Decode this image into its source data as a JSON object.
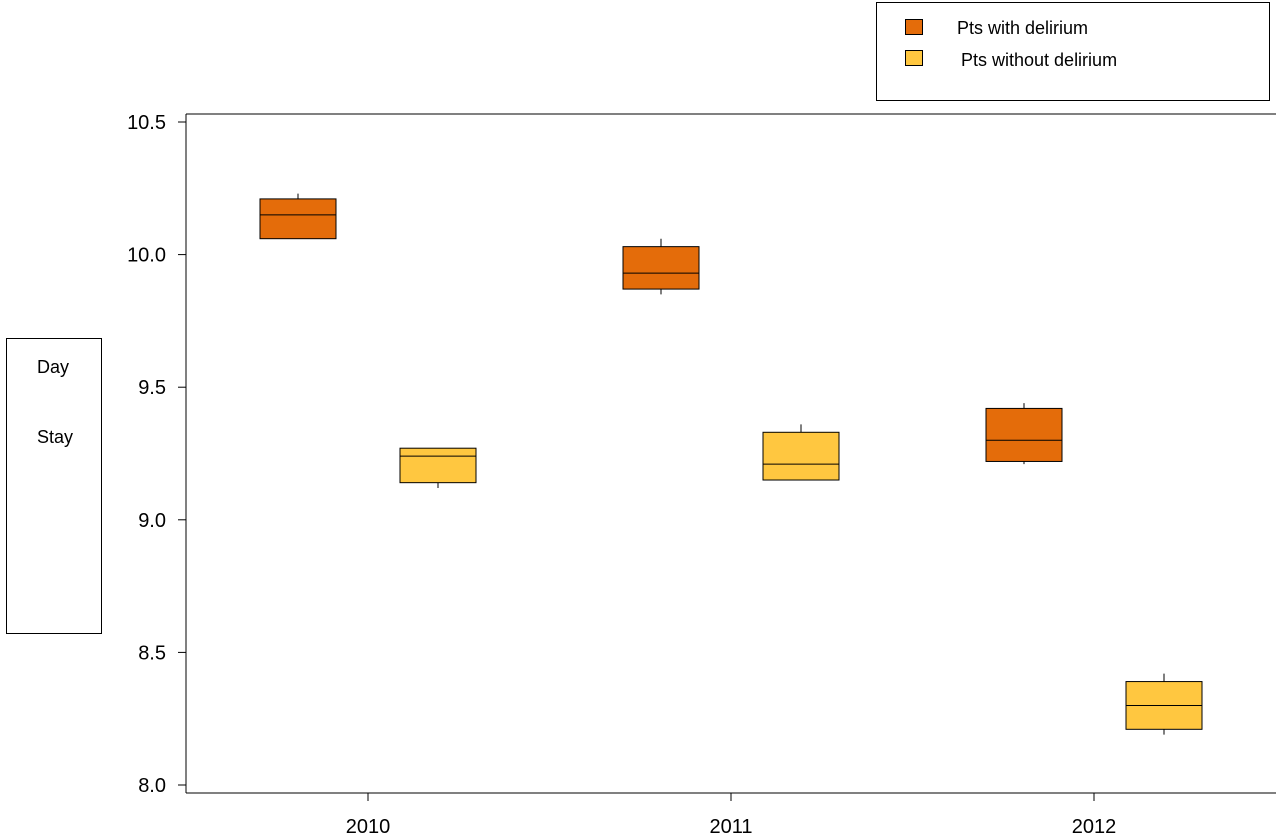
{
  "chart_data": {
    "type": "box",
    "categories": [
      "2010",
      "2011",
      "2012"
    ],
    "ylabel_lines": [
      "Day",
      "Stay"
    ],
    "ylim": [
      8.0,
      10.5
    ],
    "yticks": [
      "8.0",
      "8.5",
      "9.0",
      "9.5",
      "10.0",
      "10.5"
    ],
    "grid": false,
    "legend_position": "top-right",
    "series": [
      {
        "name": "Pts with  delirium",
        "color": "#E46C0A",
        "boxes": [
          {
            "category": "2010",
            "whisker_low": 10.06,
            "q1": 10.06,
            "median": 10.15,
            "q3": 10.21,
            "whisker_high": 10.23
          },
          {
            "category": "2011",
            "whisker_low": 9.85,
            "q1": 9.87,
            "median": 9.93,
            "q3": 10.03,
            "whisker_high": 10.06
          },
          {
            "category": "2012",
            "whisker_low": 9.21,
            "q1": 9.22,
            "median": 9.3,
            "q3": 9.42,
            "whisker_high": 9.44
          }
        ]
      },
      {
        "name": "Pts without delirium",
        "color": "#FFC740",
        "boxes": [
          {
            "category": "2010",
            "whisker_low": 9.12,
            "q1": 9.14,
            "median": 9.24,
            "q3": 9.27,
            "whisker_high": 9.27
          },
          {
            "category": "2011",
            "whisker_low": 9.15,
            "q1": 9.15,
            "median": 9.21,
            "q3": 9.33,
            "whisker_high": 9.36
          },
          {
            "category": "2012",
            "whisker_low": 8.19,
            "q1": 8.21,
            "median": 8.3,
            "q3": 8.39,
            "whisker_high": 8.42
          }
        ]
      }
    ]
  }
}
